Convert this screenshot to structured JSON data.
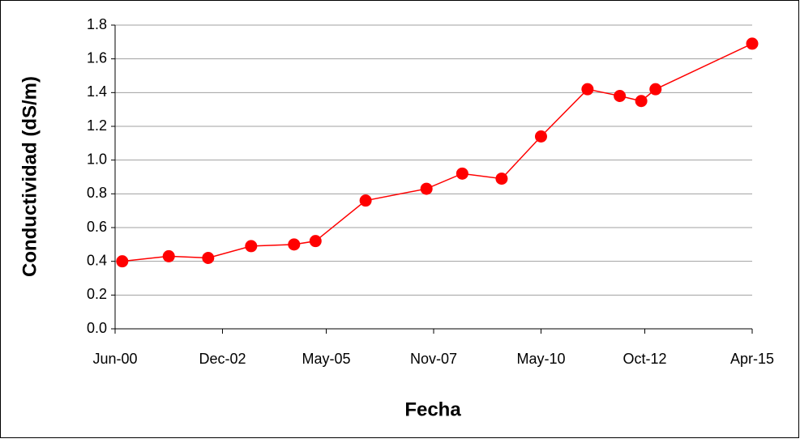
{
  "chart_data": {
    "type": "line",
    "x_label": "Fecha",
    "y_label": "Conductividad (dS/m)",
    "x": [
      "2000-08",
      "2001-09",
      "2002-08",
      "2003-08",
      "2004-08",
      "2005-02",
      "2006-04",
      "2007-09",
      "2008-07",
      "2009-06",
      "2010-05",
      "2011-06",
      "2012-03",
      "2012-09",
      "2013-01",
      "2015-04"
    ],
    "series": [
      {
        "color": "#ff0000",
        "values": [
          0.4,
          0.43,
          0.42,
          0.49,
          0.5,
          0.52,
          0.76,
          0.83,
          0.92,
          0.89,
          1.14,
          1.42,
          1.38,
          1.35,
          1.42,
          1.69
        ]
      }
    ],
    "xlim": [
      "2000-06",
      "2015-04"
    ],
    "xticks": [
      {
        "value": "2000-06",
        "label": "Jun-00"
      },
      {
        "value": "2002-12",
        "label": "Dec-02"
      },
      {
        "value": "2005-05",
        "label": "May-05"
      },
      {
        "value": "2007-11",
        "label": "Nov-07"
      },
      {
        "value": "2010-05",
        "label": "May-10"
      },
      {
        "value": "2012-10",
        "label": "Oct-12"
      },
      {
        "value": "2015-04",
        "label": "Apr-15"
      }
    ],
    "ylim": [
      0,
      1.8
    ],
    "yticks": [
      {
        "value": 0,
        "label": "0.0"
      },
      0.2,
      0.4,
      0.6,
      0.8,
      {
        "value": 1,
        "label": "1.0"
      },
      1.2,
      1.4,
      1.6,
      1.8
    ],
    "grid": true
  }
}
